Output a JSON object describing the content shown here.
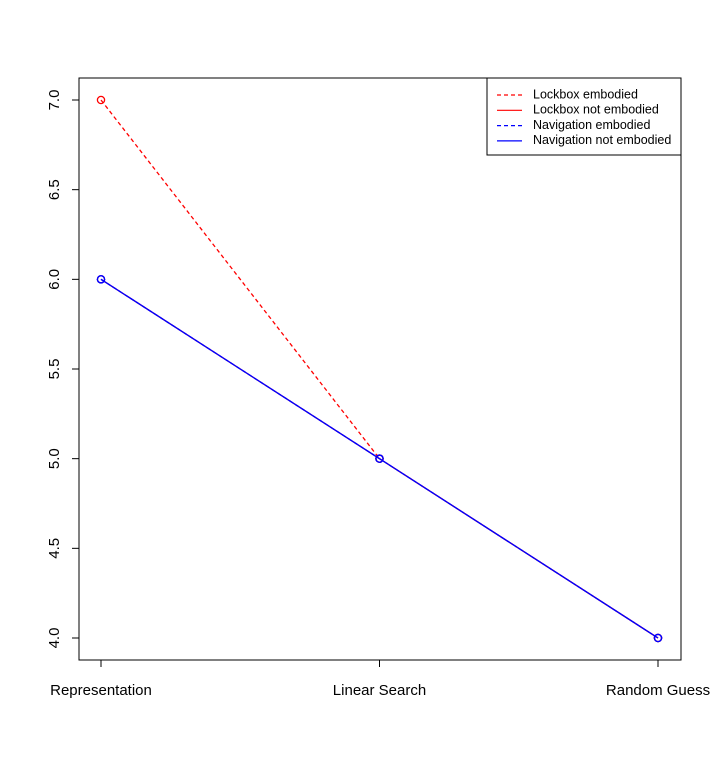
{
  "chart_data": {
    "type": "line",
    "title": "",
    "xlabel": "",
    "ylabel": "",
    "categories": [
      "Representation",
      "Linear Search",
      "Random Guess"
    ],
    "ylim": [
      4.0,
      7.0
    ],
    "yticks": [
      "4.0",
      "4.5",
      "5.0",
      "5.5",
      "6.0",
      "6.5",
      "7.0"
    ],
    "grid": false,
    "legend_position": "top-right",
    "series": [
      {
        "name": "Lockbox embodied",
        "values": [
          7,
          5,
          4
        ],
        "color": "#ff0000",
        "linestyle": "dashed",
        "marker": "open-circle"
      },
      {
        "name": "Lockbox not embodied",
        "values": [
          6,
          5,
          4
        ],
        "color": "#ff0000",
        "linestyle": "solid",
        "marker": "open-circle"
      },
      {
        "name": "Navigation embodied",
        "values": [
          6,
          5,
          4
        ],
        "color": "#0000ff",
        "linestyle": "dashed",
        "marker": "open-circle"
      },
      {
        "name": "Navigation not embodied",
        "values": [
          6,
          5,
          4
        ],
        "color": "#0000ff",
        "linestyle": "solid",
        "marker": "open-circle"
      }
    ]
  }
}
